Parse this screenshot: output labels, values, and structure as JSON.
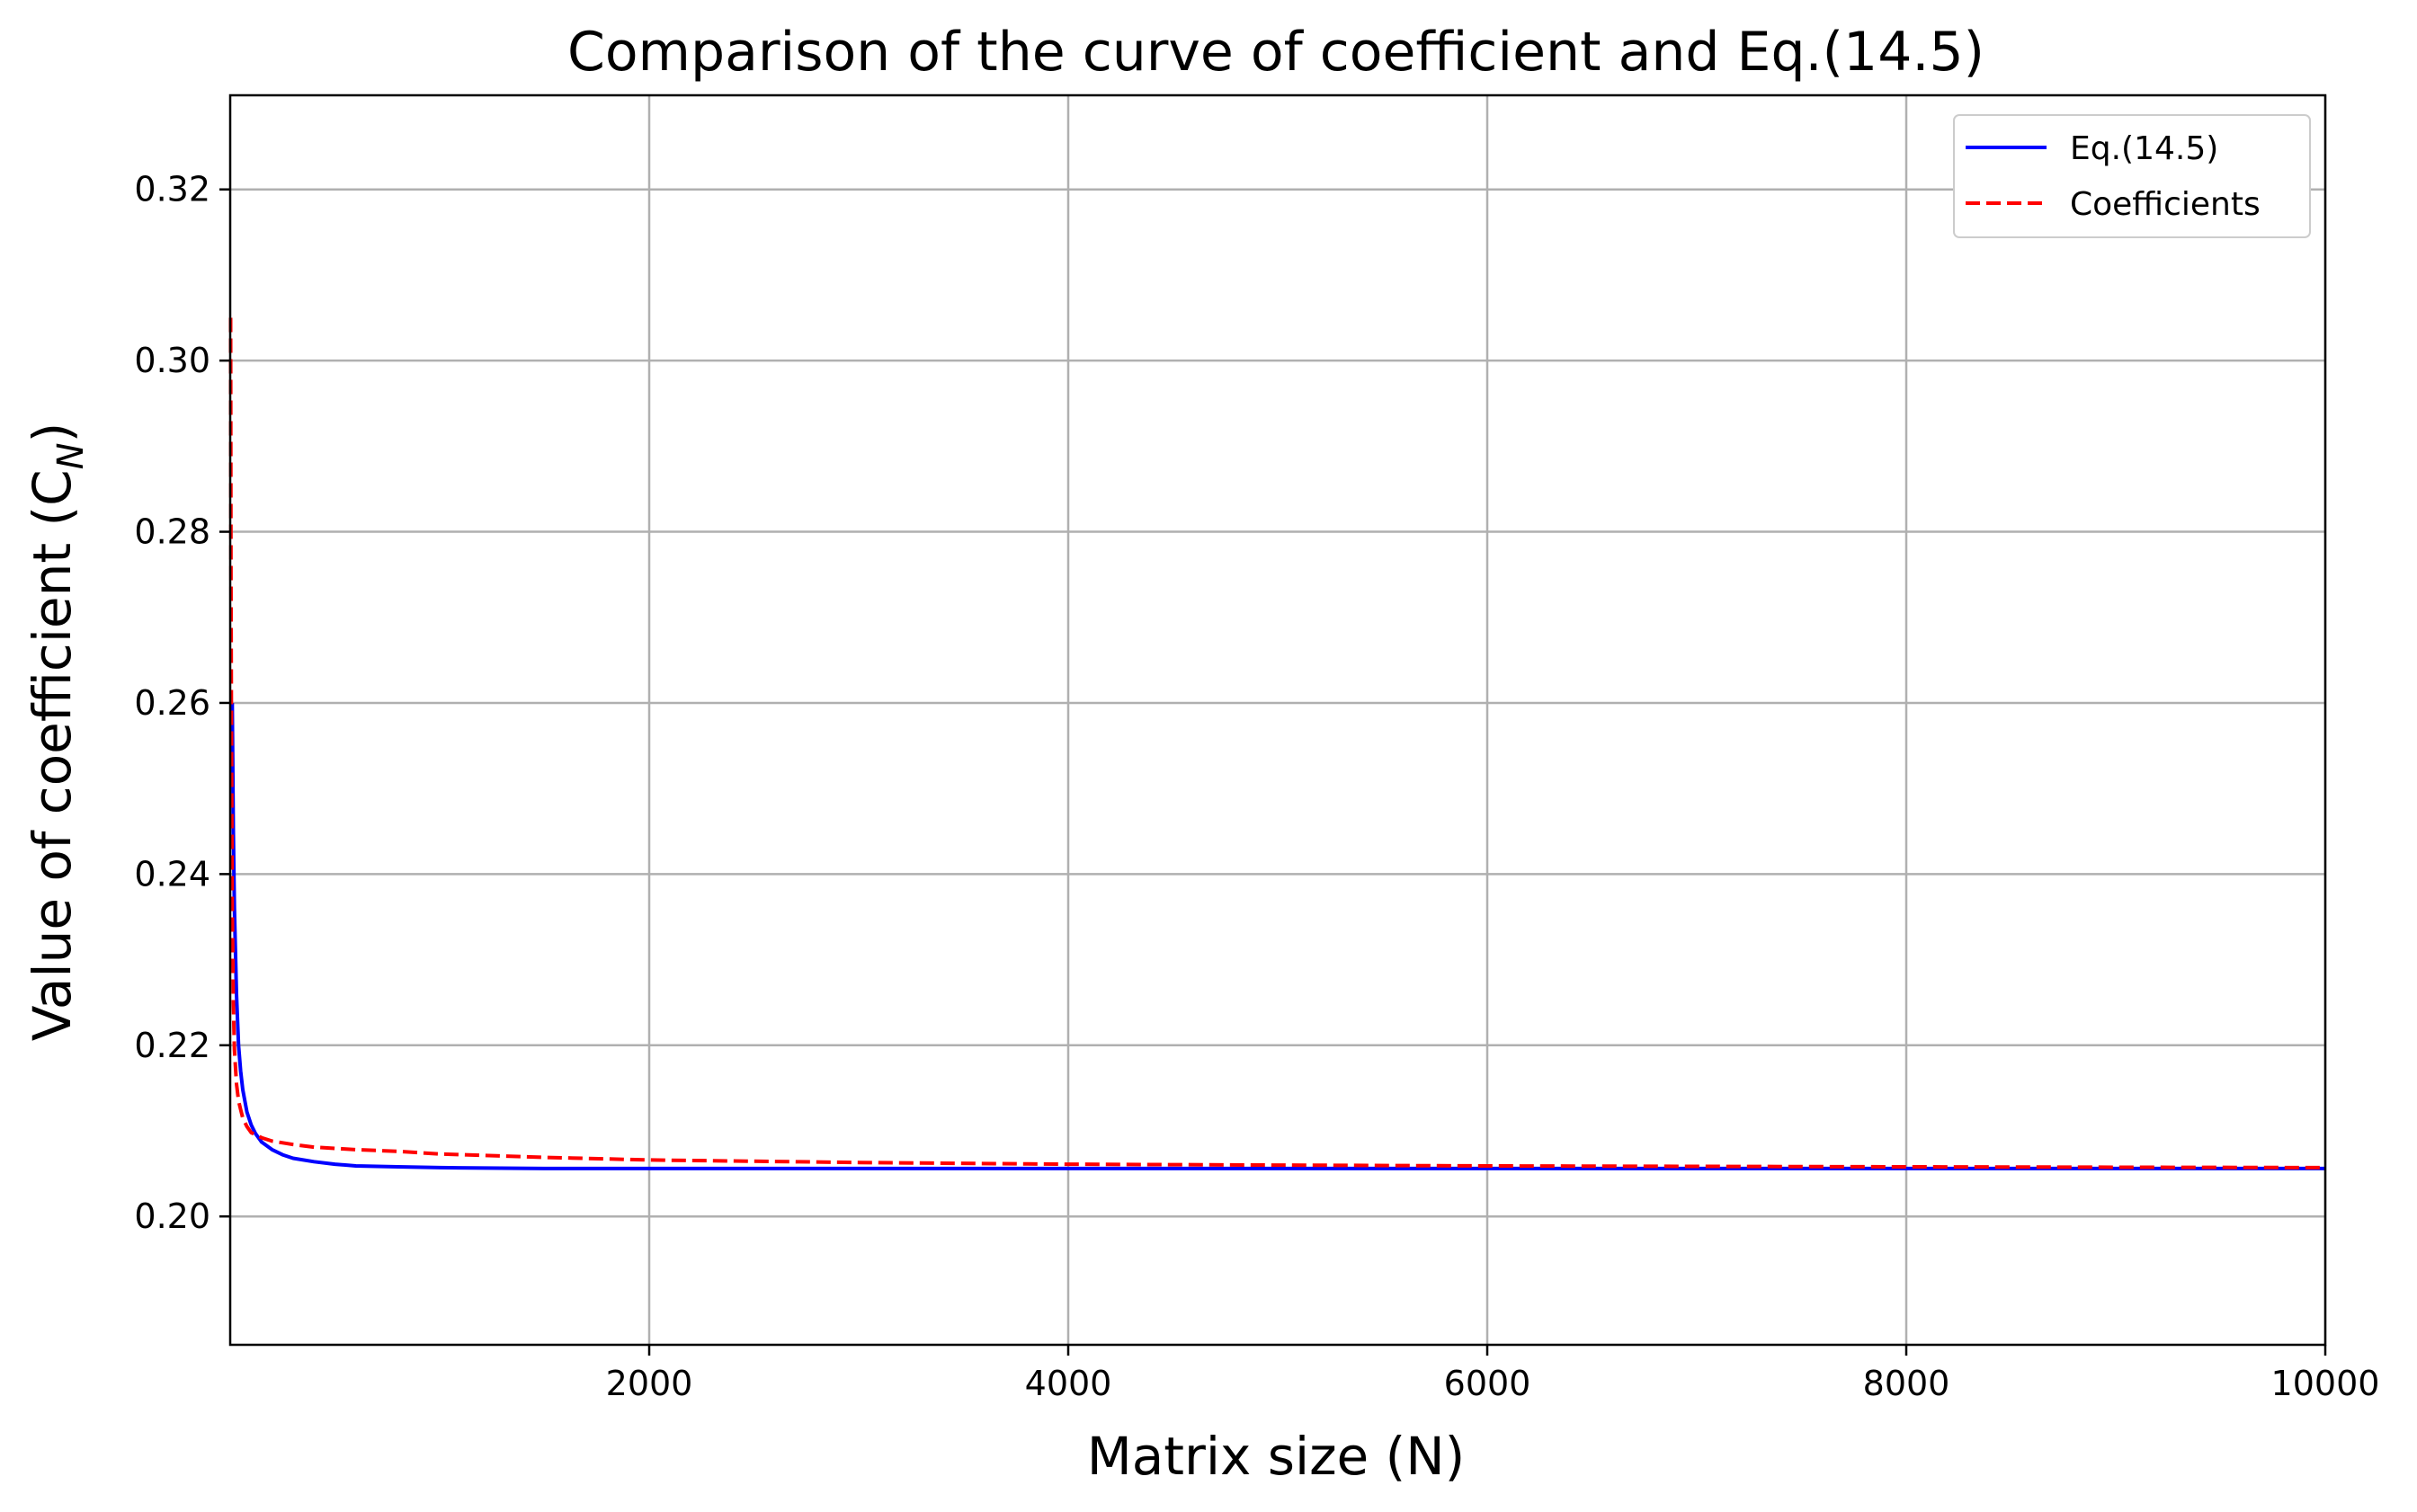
{
  "chart_data": {
    "type": "line",
    "title": "Comparison of the curve of coefficient and Eq.(14.5)",
    "xlabel": "Matrix size (N)",
    "ylabel_main": "Value of coefficient (C",
    "ylabel_sub": "N",
    "ylabel_close": ")",
    "xlim": [
      0,
      10000
    ],
    "ylim": [
      0.185,
      0.331
    ],
    "xticks": [
      2000,
      4000,
      6000,
      8000,
      10000
    ],
    "xtick_labels": [
      "2000",
      "4000",
      "6000",
      "8000",
      "10000"
    ],
    "yticks": [
      0.2,
      0.22,
      0.24,
      0.26,
      0.28,
      0.3,
      0.32
    ],
    "ytick_labels": [
      "0.20",
      "0.22",
      "0.24",
      "0.26",
      "0.28",
      "0.30",
      "0.32"
    ],
    "grid": true,
    "legend_position": "top-right",
    "series": [
      {
        "name": "Eq.(14.5)",
        "color": "#0000ff",
        "style": "solid",
        "x": [
          10,
          15,
          20,
          30,
          40,
          50,
          60,
          80,
          100,
          120,
          150,
          200,
          250,
          300,
          400,
          500,
          600,
          800,
          1000,
          1500,
          2000,
          3000,
          4000,
          5000,
          6000,
          8000,
          10000
        ],
        "y": [
          0.26,
          0.245,
          0.236,
          0.226,
          0.22,
          0.217,
          0.2148,
          0.2122,
          0.2107,
          0.2097,
          0.2087,
          0.2078,
          0.2072,
          0.2068,
          0.2064,
          0.2061,
          0.2059,
          0.2058,
          0.2057,
          0.2056,
          0.2056,
          0.2056,
          0.2056,
          0.2056,
          0.2056,
          0.2056,
          0.2056
        ]
      },
      {
        "name": "Coefficients",
        "color": "#ff0000",
        "style": "dashed",
        "x": [
          2,
          4,
          6,
          8,
          10,
          15,
          20,
          30,
          40,
          50,
          60,
          80,
          100,
          150,
          200,
          300,
          400,
          600,
          800,
          1000,
          1500,
          2000,
          3000,
          4000,
          5000,
          6000,
          8000,
          10000
        ],
        "y": [
          0.305,
          0.275,
          0.257,
          0.245,
          0.236,
          0.225,
          0.2195,
          0.2155,
          0.2135,
          0.2125,
          0.2115,
          0.2105,
          0.2098,
          0.2092,
          0.2088,
          0.2084,
          0.2081,
          0.2078,
          0.2076,
          0.2073,
          0.2069,
          0.2066,
          0.2063,
          0.2061,
          0.206,
          0.2059,
          0.2058,
          0.2057
        ]
      }
    ]
  }
}
